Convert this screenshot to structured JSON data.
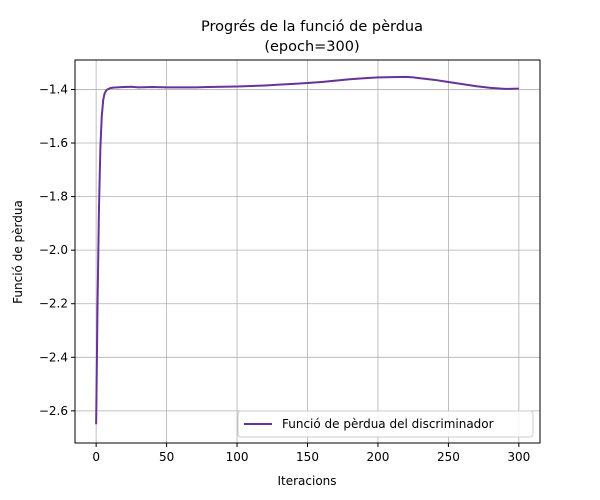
{
  "chart_data": {
    "type": "line",
    "title": "Progrés de la funció de pèrdua",
    "subtitle": "(epoch=300)",
    "xlabel": "Iteracions",
    "ylabel": "Funció de pèrdua",
    "xlim": [
      -15,
      315
    ],
    "ylim": [
      -2.72,
      -1.29
    ],
    "xticks": [
      0,
      50,
      100,
      150,
      200,
      250,
      300
    ],
    "yticks": [
      -2.6,
      -2.4,
      -2.2,
      -2.0,
      -1.8,
      -1.6,
      -1.4
    ],
    "xtick_labels": [
      "0",
      "50",
      "100",
      "150",
      "200",
      "250",
      "300"
    ],
    "ytick_labels": [
      "−2.6",
      "−2.4",
      "−2.2",
      "−2.0",
      "−1.8",
      "−1.6",
      "−1.4"
    ],
    "grid": true,
    "legend_position": "lower-right",
    "series": [
      {
        "name": "Funció de pèrdua del discriminador",
        "color": "#663399",
        "x": [
          0,
          1,
          2,
          3,
          4,
          5,
          6,
          7,
          8,
          10,
          12,
          15,
          20,
          25,
          30,
          40,
          50,
          60,
          70,
          80,
          90,
          100,
          110,
          120,
          130,
          140,
          150,
          160,
          170,
          180,
          190,
          200,
          210,
          220,
          225,
          230,
          240,
          250,
          260,
          270,
          280,
          290,
          300
        ],
        "y": [
          -2.65,
          -2.2,
          -1.85,
          -1.62,
          -1.5,
          -1.44,
          -1.415,
          -1.405,
          -1.4,
          -1.395,
          -1.393,
          -1.392,
          -1.391,
          -1.39,
          -1.392,
          -1.391,
          -1.392,
          -1.392,
          -1.392,
          -1.391,
          -1.39,
          -1.389,
          -1.387,
          -1.385,
          -1.382,
          -1.379,
          -1.376,
          -1.372,
          -1.367,
          -1.362,
          -1.358,
          -1.355,
          -1.354,
          -1.353,
          -1.355,
          -1.358,
          -1.364,
          -1.372,
          -1.38,
          -1.388,
          -1.394,
          -1.398,
          -1.397
        ]
      }
    ]
  }
}
